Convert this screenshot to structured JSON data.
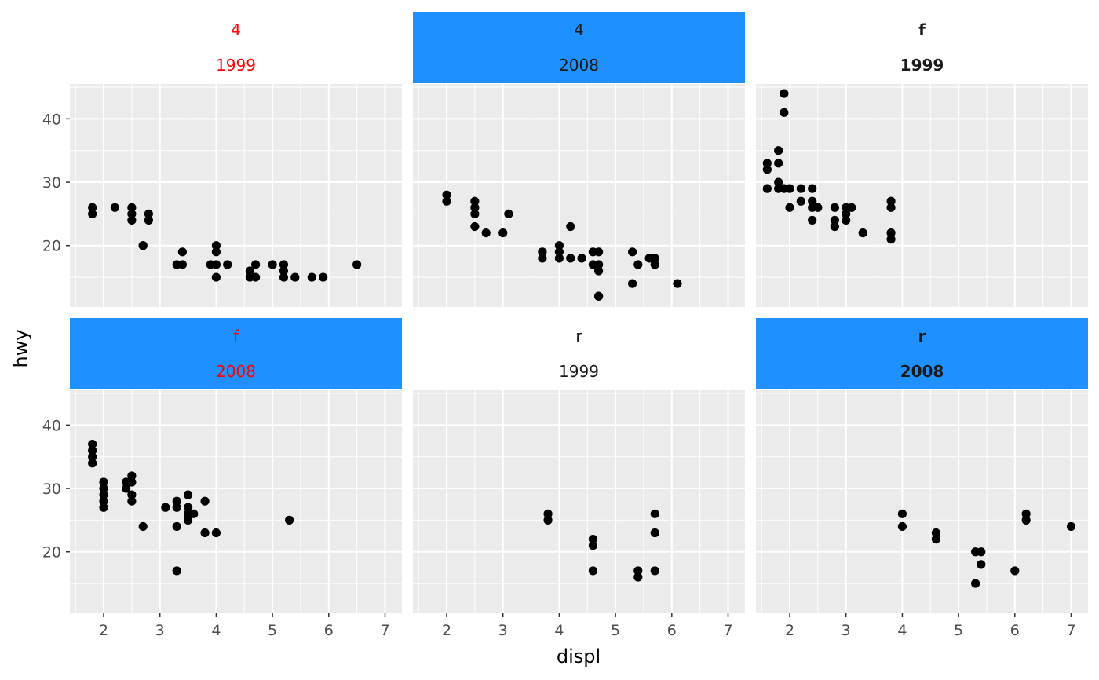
{
  "chart_data": {
    "type": "scatter",
    "xlabel": "displ",
    "ylabel": "hwy",
    "xlim": [
      1.4,
      7.3
    ],
    "ylim": [
      10.3,
      45.5
    ],
    "x_ticks": [
      "2",
      "3",
      "4",
      "5",
      "6",
      "7"
    ],
    "y_ticks": [
      "20",
      "30",
      "40"
    ],
    "panels": [
      {
        "strip": [
          "4",
          "1999"
        ],
        "strip_fill": "#FFFFFF",
        "strip_color": "#FF0000",
        "strip_bold": false,
        "points": [
          [
            1.8,
            26
          ],
          [
            1.8,
            25
          ],
          [
            2.2,
            26
          ],
          [
            2.5,
            26
          ],
          [
            2.5,
            25
          ],
          [
            2.5,
            24
          ],
          [
            2.7,
            20
          ],
          [
            2.7,
            20
          ],
          [
            2.8,
            25
          ],
          [
            2.8,
            24
          ],
          [
            3.3,
            17
          ],
          [
            3.4,
            19
          ],
          [
            3.4,
            17
          ],
          [
            3.9,
            17
          ],
          [
            4.0,
            20
          ],
          [
            4.0,
            19
          ],
          [
            4.0,
            17
          ],
          [
            4.0,
            15
          ],
          [
            4.2,
            17
          ],
          [
            4.6,
            16
          ],
          [
            4.6,
            15
          ],
          [
            4.7,
            17
          ],
          [
            4.7,
            15
          ],
          [
            5.0,
            17
          ],
          [
            5.2,
            17
          ],
          [
            5.2,
            16
          ],
          [
            5.2,
            15
          ],
          [
            5.4,
            15
          ],
          [
            5.7,
            15
          ],
          [
            5.9,
            15
          ],
          [
            6.5,
            17
          ]
        ]
      },
      {
        "strip": [
          "4",
          "2008"
        ],
        "strip_fill": "#1E90FF",
        "strip_color": "#1A1A1A",
        "strip_bold": false,
        "points": [
          [
            2.0,
            28
          ],
          [
            2.0,
            27
          ],
          [
            2.5,
            27
          ],
          [
            2.5,
            26
          ],
          [
            2.5,
            25
          ],
          [
            2.5,
            23
          ],
          [
            2.7,
            22
          ],
          [
            3.0,
            22
          ],
          [
            3.1,
            25
          ],
          [
            3.7,
            19
          ],
          [
            3.7,
            18
          ],
          [
            4.0,
            20
          ],
          [
            4.0,
            19
          ],
          [
            4.0,
            18
          ],
          [
            4.2,
            23
          ],
          [
            4.2,
            18
          ],
          [
            4.4,
            18
          ],
          [
            4.6,
            19
          ],
          [
            4.6,
            17
          ],
          [
            4.7,
            19
          ],
          [
            4.7,
            17
          ],
          [
            4.7,
            16
          ],
          [
            4.7,
            12
          ],
          [
            4.7,
            12
          ],
          [
            5.3,
            19
          ],
          [
            5.3,
            14
          ],
          [
            5.4,
            17
          ],
          [
            5.6,
            18
          ],
          [
            5.7,
            18
          ],
          [
            5.7,
            17
          ],
          [
            6.1,
            14
          ]
        ]
      },
      {
        "strip": [
          "f",
          "1999"
        ],
        "strip_fill": "#FFFFFF",
        "strip_color": "#1A1A1A",
        "strip_bold": true,
        "points": [
          [
            1.6,
            33
          ],
          [
            1.6,
            32
          ],
          [
            1.6,
            29
          ],
          [
            1.8,
            35
          ],
          [
            1.8,
            33
          ],
          [
            1.8,
            30
          ],
          [
            1.8,
            29
          ],
          [
            1.9,
            44
          ],
          [
            1.9,
            41
          ],
          [
            1.9,
            29
          ],
          [
            2.0,
            29
          ],
          [
            2.0,
            26
          ],
          [
            2.2,
            29
          ],
          [
            2.2,
            27
          ],
          [
            2.4,
            29
          ],
          [
            2.4,
            27
          ],
          [
            2.4,
            26
          ],
          [
            2.4,
            24
          ],
          [
            2.5,
            26
          ],
          [
            2.8,
            26
          ],
          [
            2.8,
            24
          ],
          [
            2.8,
            23
          ],
          [
            3.0,
            26
          ],
          [
            3.0,
            25
          ],
          [
            3.0,
            24
          ],
          [
            3.1,
            26
          ],
          [
            3.3,
            22
          ],
          [
            3.8,
            27
          ],
          [
            3.8,
            26
          ],
          [
            3.8,
            22
          ],
          [
            3.8,
            21
          ]
        ]
      },
      {
        "strip": [
          "f",
          "2008"
        ],
        "strip_fill": "#1E90FF",
        "strip_color": "#FF0000",
        "strip_bold": false,
        "points": [
          [
            1.8,
            37
          ],
          [
            1.8,
            36
          ],
          [
            1.8,
            35
          ],
          [
            1.8,
            34
          ],
          [
            2.0,
            31
          ],
          [
            2.0,
            30
          ],
          [
            2.0,
            29
          ],
          [
            2.0,
            28
          ],
          [
            2.0,
            27
          ],
          [
            2.4,
            31
          ],
          [
            2.4,
            30
          ],
          [
            2.5,
            32
          ],
          [
            2.5,
            31
          ],
          [
            2.5,
            29
          ],
          [
            2.5,
            28
          ],
          [
            2.7,
            24
          ],
          [
            3.1,
            27
          ],
          [
            3.3,
            28
          ],
          [
            3.3,
            27
          ],
          [
            3.3,
            24
          ],
          [
            3.3,
            17
          ],
          [
            3.5,
            29
          ],
          [
            3.5,
            27
          ],
          [
            3.5,
            26
          ],
          [
            3.5,
            25
          ],
          [
            3.6,
            26
          ],
          [
            3.8,
            28
          ],
          [
            3.8,
            23
          ],
          [
            4.0,
            23
          ],
          [
            5.3,
            25
          ]
        ]
      },
      {
        "strip": [
          "r",
          "1999"
        ],
        "strip_fill": "#FFFFFF",
        "strip_color": "#1A1A1A",
        "strip_bold": false,
        "points": [
          [
            3.8,
            26
          ],
          [
            3.8,
            25
          ],
          [
            4.6,
            22
          ],
          [
            4.6,
            21
          ],
          [
            4.6,
            17
          ],
          [
            5.4,
            17
          ],
          [
            5.4,
            16
          ],
          [
            5.7,
            26
          ],
          [
            5.7,
            23
          ],
          [
            5.7,
            17
          ]
        ]
      },
      {
        "strip": [
          "r",
          "2008"
        ],
        "strip_fill": "#1E90FF",
        "strip_color": "#1A1A1A",
        "strip_bold": true,
        "points": [
          [
            4.0,
            26
          ],
          [
            4.0,
            24
          ],
          [
            4.6,
            23
          ],
          [
            4.6,
            22
          ],
          [
            5.3,
            20
          ],
          [
            5.3,
            15
          ],
          [
            5.4,
            20
          ],
          [
            5.4,
            18
          ],
          [
            6.0,
            17
          ],
          [
            6.2,
            26
          ],
          [
            6.2,
            25
          ],
          [
            7.0,
            24
          ]
        ]
      }
    ]
  }
}
